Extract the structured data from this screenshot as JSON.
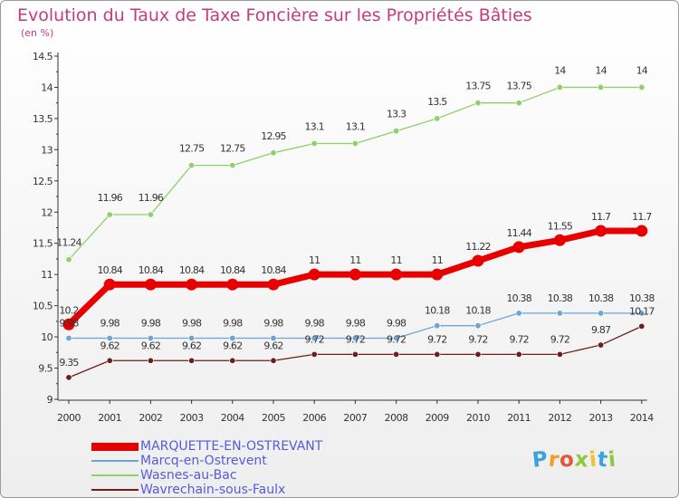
{
  "title": "Evolution du Taux de Taxe Foncière sur les Propriétés Bâties",
  "unit_label": "(en %)",
  "logo": {
    "letters": [
      "P",
      "r",
      "o",
      "x",
      "i",
      "t",
      "i"
    ],
    "colors": [
      "#3aa3dc",
      "#f39c2c",
      "#e8543a",
      "#8fc73e",
      "#f2c22e",
      "#3aa3dc",
      "#8fc73e"
    ]
  },
  "chart_data": {
    "type": "line",
    "categories": [
      "2000",
      "2001",
      "2002",
      "2003",
      "2004",
      "2005",
      "2006",
      "2007",
      "2008",
      "2009",
      "2010",
      "2011",
      "2012",
      "2013",
      "2014"
    ],
    "ylim": [
      9,
      14.5
    ],
    "yticks": [
      "9",
      "9.5",
      "10",
      "10.5",
      "11",
      "11.5",
      "12",
      "12.5",
      "13",
      "13.5",
      "14",
      "14.5"
    ],
    "grid": false,
    "legend_position": "bottom-left",
    "series": [
      {
        "name": "MARQUETTE-EN-OSTREVANT",
        "color": "#e80000",
        "bold": true,
        "values": [
          10.2,
          10.84,
          10.84,
          10.84,
          10.84,
          10.84,
          11,
          11,
          11,
          11,
          11.22,
          11.44,
          11.55,
          11.7,
          11.7
        ],
        "labels": [
          "10.2",
          "10.84",
          "10.84",
          "10.84",
          "10.84",
          "10.84",
          "11",
          "11",
          "11",
          "11",
          "11.22",
          "11.44",
          "11.55",
          "11.7",
          "11.7"
        ]
      },
      {
        "name": "Marcq-en-Ostrevent",
        "color": "#6aa5d6",
        "bold": false,
        "values": [
          9.98,
          9.98,
          9.98,
          9.98,
          9.98,
          9.98,
          9.98,
          9.98,
          9.98,
          10.18,
          10.18,
          10.38,
          10.38,
          10.38,
          10.38
        ],
        "labels": [
          "9.98",
          "9.98",
          "9.98",
          "9.98",
          "9.98",
          "9.98",
          "9.98",
          "9.98",
          "9.98",
          "10.18",
          "10.18",
          "10.38",
          "10.38",
          "10.38",
          "10.38"
        ]
      },
      {
        "name": "Wasnes-au-Bac",
        "color": "#8fd166",
        "bold": false,
        "values": [
          11.24,
          11.96,
          11.96,
          12.75,
          12.75,
          12.95,
          13.1,
          13.1,
          13.3,
          13.5,
          13.75,
          13.75,
          14,
          14,
          14
        ],
        "labels": [
          "11.24",
          "11.96",
          "11.96",
          "12.75",
          "12.75",
          "12.95",
          "13.1",
          "13.1",
          "13.3",
          "13.5",
          "13.75",
          "13.75",
          "14",
          "14",
          "14"
        ]
      },
      {
        "name": "Wavrechain-sous-Faulx",
        "color": "#6b1f1f",
        "bold": false,
        "values": [
          9.35,
          9.62,
          9.62,
          9.62,
          9.62,
          9.62,
          9.72,
          9.72,
          9.72,
          9.72,
          9.72,
          9.72,
          9.72,
          9.87,
          10.17
        ],
        "labels": [
          "9.35",
          "9.62",
          "9.62",
          "9.62",
          "9.62",
          "9.62",
          "9.72",
          "9.72",
          "9.72",
          "9.72",
          "9.72",
          "9.72",
          "9.72",
          "9.87",
          "10.17"
        ]
      }
    ]
  }
}
